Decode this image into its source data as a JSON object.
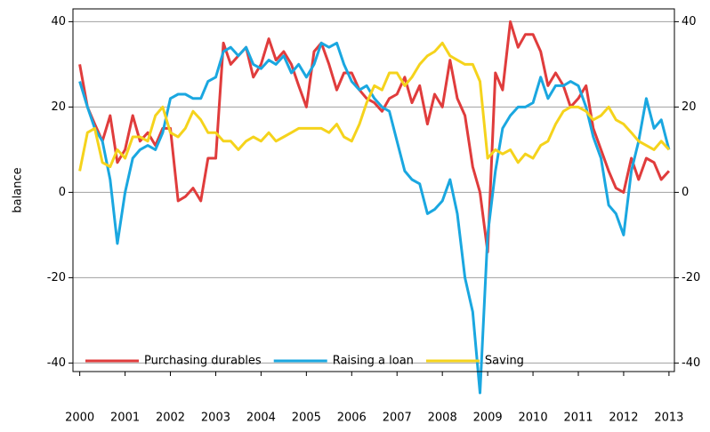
{
  "chart_data": {
    "type": "line",
    "y_label": "balance",
    "x": [
      2000,
      2000.17,
      2000.33,
      2000.5,
      2000.67,
      2000.83,
      2001,
      2001.17,
      2001.33,
      2001.5,
      2001.67,
      2001.83,
      2002,
      2002.17,
      2002.33,
      2002.5,
      2002.67,
      2002.83,
      2003,
      2003.17,
      2003.33,
      2003.5,
      2003.67,
      2003.83,
      2004,
      2004.17,
      2004.33,
      2004.5,
      2004.67,
      2004.83,
      2005,
      2005.17,
      2005.33,
      2005.5,
      2005.67,
      2005.83,
      2006,
      2006.17,
      2006.33,
      2006.5,
      2006.67,
      2006.83,
      2007,
      2007.17,
      2007.33,
      2007.5,
      2007.67,
      2007.83,
      2008,
      2008.17,
      2008.33,
      2008.5,
      2008.67,
      2008.83,
      2009,
      2009.17,
      2009.33,
      2009.5,
      2009.67,
      2009.83,
      2010,
      2010.17,
      2010.33,
      2010.5,
      2010.67,
      2010.83,
      2011,
      2011.17,
      2011.33,
      2011.5,
      2011.67,
      2011.83,
      2012,
      2012.17,
      2012.33,
      2012.5,
      2012.67,
      2012.83,
      2013
    ],
    "series": [
      {
        "name": "Purchasing durables",
        "color": "#e03c3c",
        "values": [
          30,
          20,
          16,
          12,
          18,
          7,
          10,
          18,
          12,
          14,
          11,
          15,
          15,
          -2,
          -1,
          1,
          -2,
          8,
          8,
          35,
          30,
          32,
          34,
          27,
          30,
          36,
          31,
          33,
          30,
          25,
          20,
          33,
          35,
          30,
          24,
          28,
          28,
          24,
          22,
          21,
          19,
          22,
          23,
          27,
          21,
          25,
          16,
          23,
          20,
          31,
          22,
          18,
          6,
          0,
          -14,
          28,
          24,
          40,
          34,
          37,
          37,
          33,
          25,
          28,
          25,
          20,
          22,
          25,
          15,
          10,
          5,
          1,
          0,
          8,
          3,
          8,
          7,
          3,
          5
        ]
      },
      {
        "name": "Raising a loan",
        "color": "#1aa7e0",
        "values": [
          26,
          20,
          15,
          12,
          3,
          -12,
          0,
          8,
          10,
          11,
          10,
          14,
          22,
          23,
          23,
          22,
          22,
          26,
          27,
          33,
          34,
          32,
          34,
          30,
          29,
          31,
          30,
          32,
          28,
          30,
          27,
          30,
          35,
          34,
          35,
          30,
          26,
          24,
          25,
          22,
          20,
          19,
          12,
          5,
          3,
          2,
          -5,
          -4,
          -2,
          3,
          -5,
          -20,
          -28,
          -47,
          -10,
          5,
          15,
          18,
          20,
          20,
          21,
          27,
          22,
          25,
          25,
          26,
          25,
          20,
          13,
          8,
          -3,
          -5,
          -10,
          5,
          12,
          22,
          15,
          17,
          10
        ]
      },
      {
        "name": "Saving",
        "color": "#f5d31c",
        "values": [
          5,
          14,
          15,
          7,
          6,
          10,
          8,
          13,
          13,
          12,
          18,
          20,
          14,
          13,
          15,
          19,
          17,
          14,
          14,
          12,
          12,
          10,
          12,
          13,
          12,
          14,
          12,
          13,
          14,
          15,
          15,
          15,
          15,
          14,
          16,
          13,
          12,
          16,
          21,
          25,
          24,
          28,
          28,
          25,
          27,
          30,
          32,
          33,
          35,
          32,
          31,
          30,
          30,
          26,
          8,
          10,
          9,
          10,
          7,
          9,
          8,
          11,
          12,
          16,
          19,
          20,
          20,
          19,
          17,
          18,
          20,
          17,
          16,
          14,
          12,
          11,
          10,
          12,
          10
        ]
      }
    ],
    "xlim": [
      1999.85,
      2013.12
    ],
    "xticks": [
      2000,
      2001,
      2002,
      2003,
      2004,
      2005,
      2006,
      2007,
      2008,
      2009,
      2010,
      2011,
      2012,
      2013
    ],
    "ylim": [
      -42,
      43
    ],
    "yticks": [
      -40,
      -20,
      0,
      20,
      40
    ],
    "y2lim": [
      -42,
      43
    ],
    "y2ticks": [
      -40,
      -20,
      0,
      20,
      40
    ],
    "grid": true,
    "legend": "bottom-left"
  }
}
